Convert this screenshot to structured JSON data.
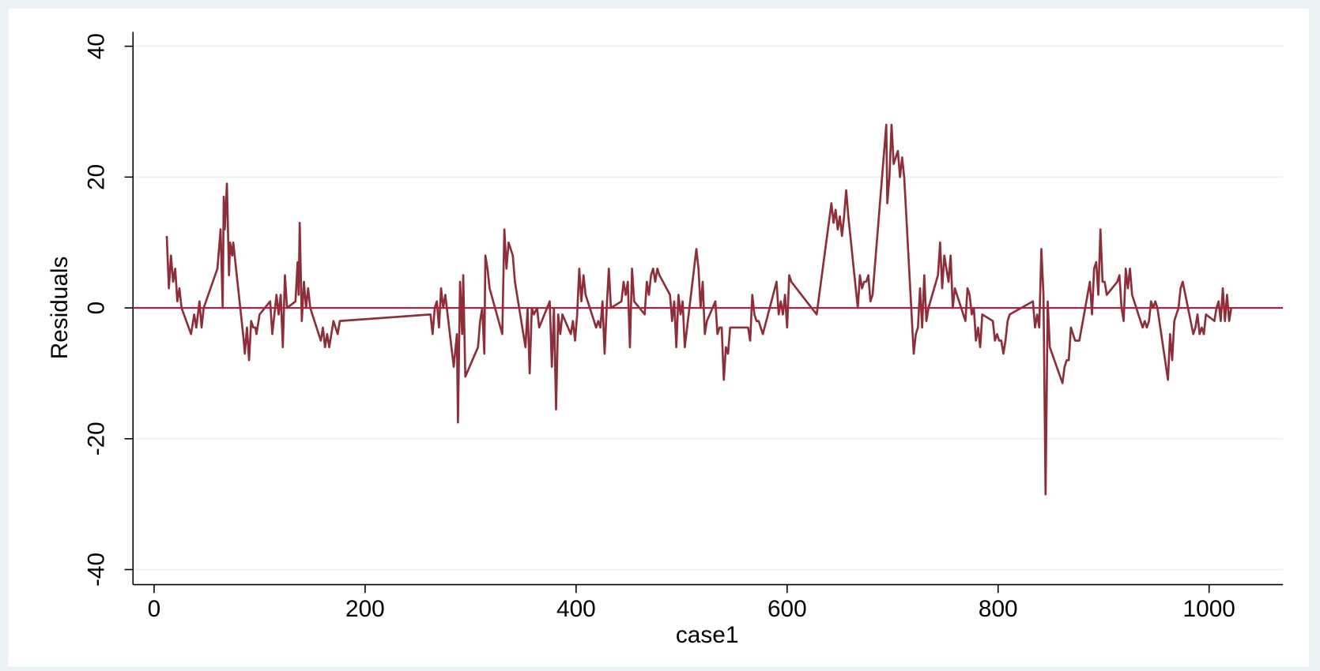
{
  "chart_data": {
    "type": "line",
    "xlabel": "case1",
    "ylabel": "Residuals",
    "x": [
      12,
      14,
      16,
      18,
      20,
      22,
      24,
      26,
      35,
      38,
      40,
      43,
      45,
      47,
      60,
      63,
      65,
      66,
      67,
      69,
      71,
      72,
      74,
      75,
      85,
      86,
      88,
      90,
      92,
      94,
      96,
      97,
      100,
      110,
      112,
      114,
      116,
      118,
      120,
      122,
      124,
      126,
      134,
      136,
      137,
      138,
      140,
      142,
      144,
      146,
      148,
      158,
      160,
      162,
      164,
      166,
      168,
      170,
      172,
      174,
      176,
      262,
      264,
      266,
      268,
      270,
      272,
      274,
      276,
      284,
      287,
      288,
      290,
      292,
      293,
      295,
      307,
      309,
      311,
      313,
      314,
      316,
      318,
      330,
      332,
      334,
      336,
      338,
      340,
      342,
      352,
      354,
      356,
      358,
      360,
      363,
      365,
      375,
      377,
      379,
      381,
      383,
      385,
      387,
      395,
      397,
      399,
      401,
      403,
      405,
      407,
      409,
      419,
      421,
      423,
      425,
      427,
      429,
      431,
      433,
      443,
      445,
      447,
      449,
      451,
      453,
      455,
      465,
      467,
      469,
      471,
      473,
      475,
      477,
      479,
      489,
      491,
      493,
      495,
      497,
      499,
      501,
      503,
      514,
      516,
      518,
      520,
      522,
      524,
      532,
      534,
      536,
      538,
      540,
      542,
      544,
      546,
      548,
      550,
      563,
      565,
      567,
      569,
      571,
      573,
      575,
      577,
      590,
      592,
      594,
      596,
      598,
      600,
      602,
      604,
      628,
      642,
      644,
      646,
      648,
      650,
      652,
      654,
      656,
      658,
      667,
      669,
      671,
      673,
      675,
      677,
      679,
      681,
      694,
      695,
      697,
      699,
      701,
      703,
      705,
      707,
      709,
      711,
      720,
      722,
      724,
      726,
      728,
      730,
      732,
      734,
      743,
      745,
      747,
      749,
      751,
      753,
      755,
      757,
      759,
      769,
      771,
      773,
      775,
      777,
      779,
      781,
      783,
      785,
      795,
      797,
      799,
      801,
      803,
      805,
      807,
      809,
      811,
      833,
      835,
      837,
      839,
      841,
      843,
      845,
      847,
      849,
      861,
      863,
      865,
      867,
      869,
      871,
      873,
      875,
      877,
      887,
      889,
      891,
      893,
      895,
      897,
      899,
      901,
      903,
      913,
      915,
      917,
      919,
      921,
      923,
      925,
      927,
      937,
      939,
      941,
      943,
      945,
      947,
      949,
      951,
      961,
      963,
      965,
      967,
      969,
      971,
      973,
      975,
      985,
      987,
      989,
      991,
      993,
      995,
      997,
      1005,
      1007,
      1009,
      1011,
      1013,
      1015,
      1017,
      1019,
      1021
    ],
    "series": [
      {
        "color": "#8c2f39",
        "values": [
          11,
          3,
          8,
          4,
          6,
          1,
          3,
          0,
          -4,
          -1,
          -3,
          1,
          -3,
          0,
          6,
          12,
          0,
          17,
          12,
          19,
          5,
          10,
          8,
          10,
          -5,
          -7,
          -3,
          -8,
          -2,
          -3,
          -3,
          -4,
          -1,
          1,
          -4,
          -1,
          2,
          -1,
          2,
          -6,
          5,
          0,
          1,
          7,
          2,
          13,
          -2,
          4,
          0,
          3,
          0,
          -5,
          -3,
          -6,
          -4,
          -6,
          -4,
          -2,
          -3,
          -4,
          -2,
          -1,
          -4,
          0,
          1,
          -3,
          3,
          0,
          2,
          -9,
          -4,
          -17.5,
          4,
          -4,
          5,
          -10.5,
          -6,
          -2,
          0,
          -7,
          8,
          6,
          3,
          -4,
          12,
          6,
          10,
          9,
          8,
          4,
          -6,
          0,
          -10,
          0,
          -1,
          0,
          -3,
          1,
          -9,
          0,
          -15.5,
          -1,
          -4,
          -1,
          -4,
          -2,
          -5,
          -1,
          6,
          1,
          5,
          2,
          -3,
          -2,
          -3,
          1,
          -7,
          0,
          6,
          0,
          1,
          4,
          2,
          4,
          -6,
          6,
          1,
          -1,
          4,
          2,
          5,
          6,
          4,
          6,
          5,
          2,
          -2,
          1,
          -6,
          2,
          -1,
          1,
          -6,
          9,
          6,
          0,
          4,
          -4,
          -2,
          1,
          -4,
          -3,
          -3,
          -11,
          -6,
          -7,
          -3,
          -3,
          -3,
          -3,
          -5,
          2,
          -1,
          -2,
          -2,
          -3,
          -4,
          4,
          -1,
          1,
          -1,
          2,
          -3,
          5,
          4,
          -1,
          16,
          13,
          15,
          12,
          14,
          11,
          14,
          18,
          14,
          0,
          5,
          3,
          4,
          4,
          5,
          1,
          2,
          28,
          16,
          20,
          28,
          22,
          23,
          24,
          20,
          23,
          20,
          -7,
          -4,
          -3,
          3,
          -3,
          5,
          -2,
          0,
          5,
          10,
          3,
          8,
          6,
          4,
          8,
          0,
          3,
          -2,
          3,
          2,
          -1,
          0,
          -5,
          -3,
          -6,
          -1,
          -2,
          -5,
          -4,
          -5,
          -5,
          -7,
          -5,
          -2,
          -1,
          1,
          -3,
          -1,
          -3,
          9,
          2,
          -28.5,
          1,
          -6,
          -11.5,
          -9,
          -8,
          -8,
          -3,
          -4,
          -5,
          -5,
          -5,
          4,
          -1,
          6,
          7,
          2,
          12,
          4,
          4,
          2,
          4,
          5,
          0,
          -2,
          6,
          3,
          6,
          2,
          -3,
          -2,
          -3,
          -2,
          1,
          0,
          1,
          0,
          -11,
          -4,
          -8,
          -2,
          -1,
          0,
          3,
          4,
          -4,
          -3,
          -1,
          -4,
          -3,
          -4,
          -1,
          -2,
          0,
          1,
          -2,
          3,
          -2,
          2,
          -2,
          0
        ]
      }
    ],
    "refline": {
      "value": 0,
      "color": "#b81c3a"
    },
    "xlim": [
      -20,
      1070
    ],
    "ylim": [
      -42.3,
      42.2
    ],
    "xticks": [
      0,
      200,
      400,
      600,
      800,
      1000
    ],
    "yticks": [
      -40,
      -20,
      0,
      20,
      40
    ],
    "grid": true
  }
}
